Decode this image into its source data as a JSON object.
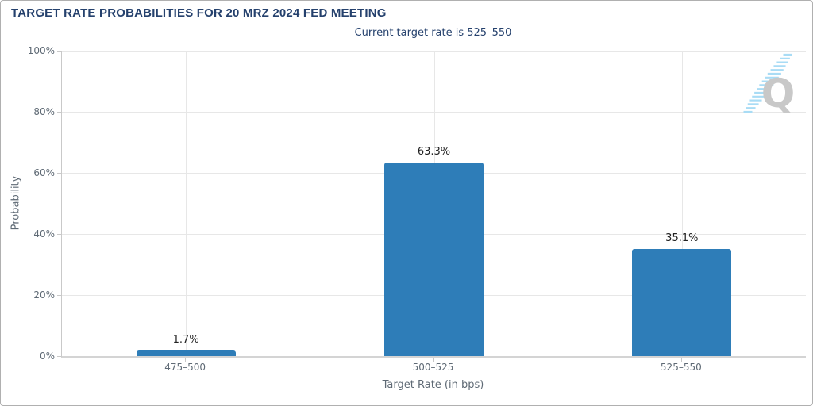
{
  "chart_data": {
    "type": "bar",
    "title": "TARGET RATE PROBABILITIES FOR 20 MRZ 2024 FED MEETING",
    "subtitle": "Current target rate is 525–550",
    "categories": [
      "475–500",
      "500–525",
      "525–550"
    ],
    "values": [
      1.7,
      63.3,
      35.1
    ],
    "value_labels": [
      "1.7%",
      "63.3%",
      "35.1%"
    ],
    "xlabel": "Target Rate (in bps)",
    "ylabel": "Probability",
    "ylim": [
      0,
      100
    ],
    "yticks": [
      0,
      20,
      40,
      60,
      80,
      100
    ],
    "ytick_labels": [
      "0%",
      "20%",
      "40%",
      "60%",
      "80%",
      "100%"
    ],
    "grid": true,
    "legend": "none",
    "bar_width_fraction": 0.4
  },
  "colors": {
    "bar": "#2e7db8",
    "heading": "#25416d",
    "axis_text": "#5f6a75",
    "value_text": "#222222",
    "grid_line": "#e7e7e7",
    "axis_line": "#c9c9c9",
    "logo_gray": "#c8c8c8",
    "logo_blue": "#a9dcf5"
  },
  "logo": {
    "letter": "Q"
  }
}
